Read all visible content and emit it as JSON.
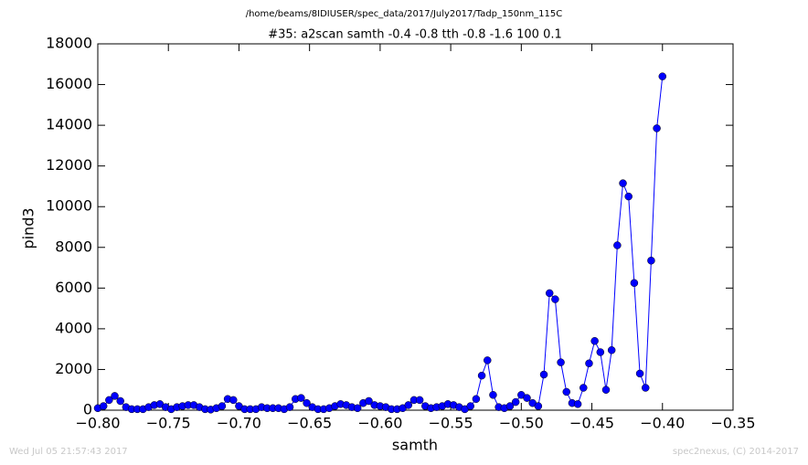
{
  "chart_data": {
    "type": "line",
    "title": "/home/beams/8IDIUSER/spec_data/2017/July2017/Tadp_150nm_115C",
    "subtitle": "#35: a2scan  samth -0.4 -0.8  tth -0.8 -1.6  100 0.1",
    "x_label": "samth",
    "y_label": "pind3",
    "footer_left": "Wed Jul 05 21:57:43 2017",
    "footer_right": "spec2nexus, (C) 2014-2017",
    "color": "#0000ff",
    "markers": true,
    "x": [
      -0.8,
      -0.796,
      -0.792,
      -0.788,
      -0.784,
      -0.78,
      -0.776,
      -0.772,
      -0.768,
      -0.764,
      -0.76,
      -0.756,
      -0.752,
      -0.748,
      -0.744,
      -0.74,
      -0.736,
      -0.732,
      -0.728,
      -0.724,
      -0.72,
      -0.716,
      -0.712,
      -0.708,
      -0.704,
      -0.7,
      -0.696,
      -0.692,
      -0.688,
      -0.684,
      -0.68,
      -0.676,
      -0.672,
      -0.668,
      -0.664,
      -0.66,
      -0.656,
      -0.652,
      -0.648,
      -0.644,
      -0.64,
      -0.636,
      -0.632,
      -0.628,
      -0.624,
      -0.62,
      -0.616,
      -0.612,
      -0.608,
      -0.604,
      -0.6,
      -0.596,
      -0.592,
      -0.588,
      -0.584,
      -0.58,
      -0.576,
      -0.572,
      -0.568,
      -0.564,
      -0.56,
      -0.556,
      -0.552,
      -0.548,
      -0.544,
      -0.54,
      -0.536,
      -0.532,
      -0.528,
      -0.524,
      -0.52,
      -0.516,
      -0.512,
      -0.508,
      -0.504,
      -0.5,
      -0.496,
      -0.492,
      -0.488,
      -0.484,
      -0.48,
      -0.476,
      -0.472,
      -0.468,
      -0.464,
      -0.46,
      -0.456,
      -0.452,
      -0.448,
      -0.444,
      -0.44,
      -0.436,
      -0.432,
      -0.428,
      -0.424,
      -0.42,
      -0.416,
      -0.412,
      -0.408,
      -0.404,
      -0.4
    ],
    "values": [
      100,
      200,
      500,
      700,
      450,
      150,
      50,
      50,
      50,
      150,
      250,
      300,
      150,
      50,
      150,
      200,
      250,
      250,
      150,
      50,
      30,
      100,
      200,
      550,
      500,
      200,
      50,
      50,
      50,
      150,
      100,
      100,
      100,
      50,
      150,
      550,
      600,
      350,
      150,
      50,
      50,
      100,
      200,
      300,
      250,
      150,
      100,
      350,
      450,
      250,
      200,
      150,
      50,
      50,
      100,
      250,
      500,
      500,
      200,
      100,
      150,
      200,
      300,
      250,
      150,
      50,
      200,
      550,
      1700,
      2450,
      750,
      150,
      100,
      200,
      400,
      750,
      600,
      350,
      200,
      1750,
      5750,
      5450,
      2350,
      900,
      350,
      300,
      1100,
      2300,
      3400,
      2850,
      1000,
      2950,
      8100,
      11150,
      10500,
      6250,
      1800,
      1100,
      7350,
      13850,
      16400
    ],
    "xlim": [
      -0.8,
      -0.35
    ],
    "xticks": [
      {
        "value": -0.8,
        "label": "−0.80"
      },
      {
        "value": -0.75,
        "label": "−0.75"
      },
      {
        "value": -0.7,
        "label": "−0.70"
      },
      {
        "value": -0.65,
        "label": "−0.65"
      },
      {
        "value": -0.6,
        "label": "−0.60"
      },
      {
        "value": -0.55,
        "label": "−0.55"
      },
      {
        "value": -0.5,
        "label": "−0.50"
      },
      {
        "value": -0.45,
        "label": "−0.45"
      },
      {
        "value": -0.4,
        "label": "−0.40"
      },
      {
        "value": -0.35,
        "label": "−0.35"
      }
    ],
    "ylim": [
      0,
      18000
    ],
    "yticks": [
      0,
      2000,
      4000,
      6000,
      8000,
      10000,
      12000,
      14000,
      16000,
      18000
    ],
    "grid": false
  }
}
